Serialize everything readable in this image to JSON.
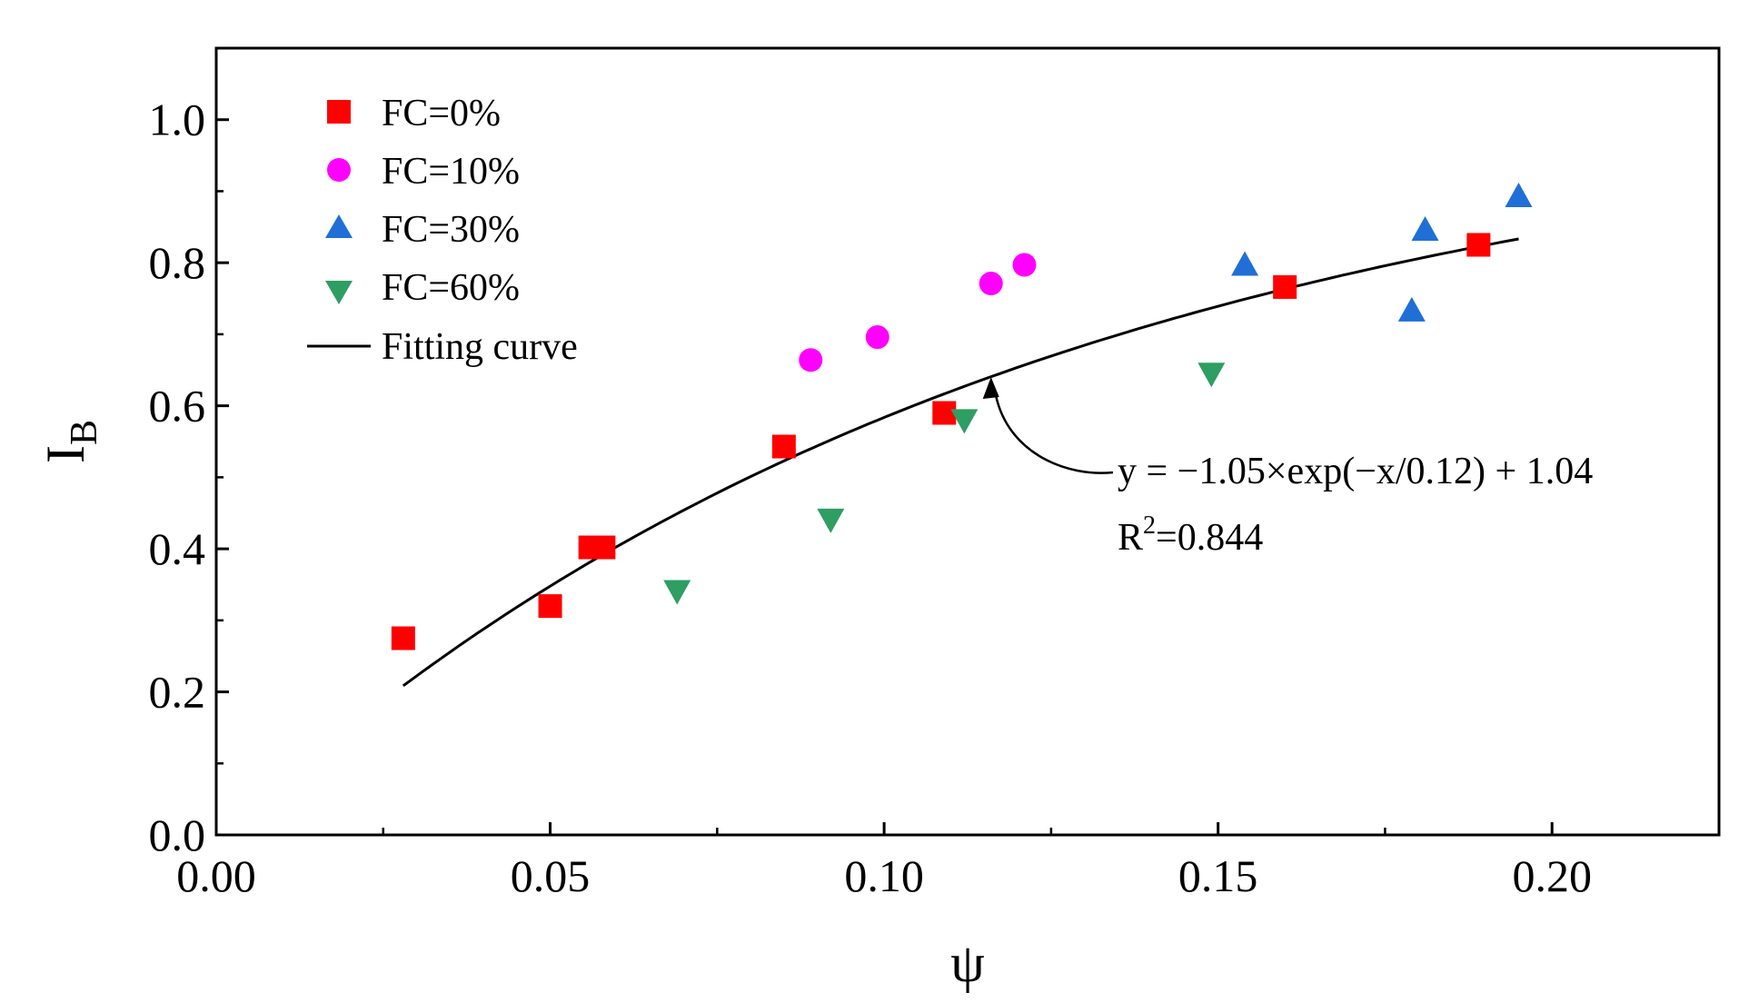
{
  "chart_data": {
    "type": "scatter",
    "xlabel": "ψ",
    "ylabel_main": "I",
    "ylabel_sub": "B",
    "xlim": [
      0.0,
      0.225
    ],
    "ylim": [
      0.0,
      1.1
    ],
    "xticks": [
      0.0,
      0.05,
      0.1,
      0.15,
      0.2
    ],
    "xtick_labels": [
      "0.00",
      "0.05",
      "0.10",
      "0.15",
      "0.20"
    ],
    "yticks": [
      0.0,
      0.2,
      0.4,
      0.6,
      0.8,
      1.0
    ],
    "ytick_labels": [
      "0.0",
      "0.2",
      "0.4",
      "0.6",
      "0.8",
      "1.0"
    ],
    "legend_position": "top-left",
    "series": [
      {
        "name": "FC=0%",
        "marker": "square",
        "color": "#ff0000",
        "points": [
          [
            0.028,
            0.275
          ],
          [
            0.05,
            0.32
          ],
          [
            0.056,
            0.402
          ],
          [
            0.058,
            0.402
          ],
          [
            0.085,
            0.543
          ],
          [
            0.109,
            0.59
          ],
          [
            0.16,
            0.766
          ],
          [
            0.189,
            0.825
          ]
        ]
      },
      {
        "name": "FC=10%",
        "marker": "circle",
        "color": "#ff00ff",
        "points": [
          [
            0.089,
            0.664
          ],
          [
            0.099,
            0.696
          ],
          [
            0.116,
            0.771
          ],
          [
            0.121,
            0.797
          ]
        ]
      },
      {
        "name": "FC=30%",
        "marker": "triangle-up",
        "color": "#1f6fd6",
        "points": [
          [
            0.154,
            0.797
          ],
          [
            0.179,
            0.733
          ],
          [
            0.181,
            0.846
          ],
          [
            0.195,
            0.893
          ]
        ]
      },
      {
        "name": "FC=60%",
        "marker": "triangle-down",
        "color": "#2e9e62",
        "points": [
          [
            0.069,
            0.341
          ],
          [
            0.092,
            0.441
          ],
          [
            0.112,
            0.58
          ],
          [
            0.149,
            0.645
          ]
        ]
      }
    ],
    "fit": {
      "name": "Fitting curve",
      "a": -1.05,
      "b": 0.12,
      "c": 1.04,
      "x_range": [
        0.028,
        0.195
      ],
      "color": "#000000"
    },
    "annotation": {
      "equation": "y = −1.05×exp(−x/0.12) + 1.04",
      "r2_prefix": "R",
      "r2_sup": "2",
      "r2_value": "=0.844",
      "arrow_point": [
        0.116,
        0.658
      ]
    }
  }
}
